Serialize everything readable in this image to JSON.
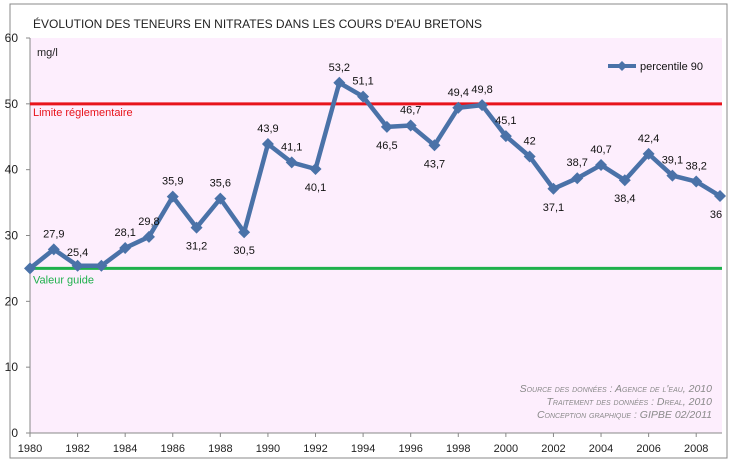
{
  "chart_data": {
    "type": "line",
    "title": "Évolution des teneurs en nitrates dans les cours d'eau bretons",
    "ylabel": "mg/l",
    "ylim": [
      0,
      60
    ],
    "yticks": [
      0,
      10,
      20,
      30,
      40,
      50,
      60
    ],
    "xlim": [
      1980,
      2009
    ],
    "xticks": [
      1980,
      1982,
      1984,
      1986,
      1988,
      1990,
      1992,
      1994,
      1996,
      1998,
      2000,
      2002,
      2004,
      2006,
      2008
    ],
    "grid": false,
    "legend": "top-right",
    "series": [
      {
        "name": "percentile 90",
        "color": "#4a72a8",
        "x": [
          1980,
          1981,
          1982,
          1983,
          1984,
          1985,
          1986,
          1987,
          1988,
          1989,
          1990,
          1991,
          1992,
          1993,
          1994,
          1995,
          1996,
          1997,
          1998,
          1999,
          2000,
          2001,
          2002,
          2003,
          2004,
          2005,
          2006,
          2007,
          2008,
          2009
        ],
        "values": [
          25,
          27.9,
          25.4,
          25.4,
          28.1,
          29.8,
          35.9,
          31.2,
          35.6,
          30.5,
          43.9,
          41.1,
          40.1,
          53.2,
          51.1,
          46.5,
          46.7,
          43.7,
          49.4,
          49.8,
          45.1,
          42,
          37.1,
          38.7,
          40.7,
          38.4,
          42.4,
          39.1,
          38.2,
          36
        ],
        "labels": [
          "",
          "27,9",
          "25,4",
          "",
          "28,1",
          "29,8",
          "35,9",
          "31,2",
          "35,6",
          "30,5",
          "43,9",
          "41,1",
          "40,1",
          "53,2",
          "51,1",
          "46,5",
          "46,7",
          "43,7",
          "49,4",
          "49,8",
          "45,1",
          "42",
          "37,1",
          "38,7",
          "40,7",
          "38,4",
          "42,4",
          "39,1",
          "38,2",
          "36"
        ]
      }
    ],
    "reference_lines": [
      {
        "label": "Limite réglementaire",
        "value": 50,
        "color": "#e8141c"
      },
      {
        "label": "Valeur guide",
        "value": 25,
        "color": "#1fb04c"
      }
    ],
    "annotations": [
      "Source des données : Agence de l'eau, 2010",
      "Traitement des données : Dreal, 2010",
      "Conception graphique : GIPBE 02/2011"
    ],
    "background": "#fdeefd"
  }
}
